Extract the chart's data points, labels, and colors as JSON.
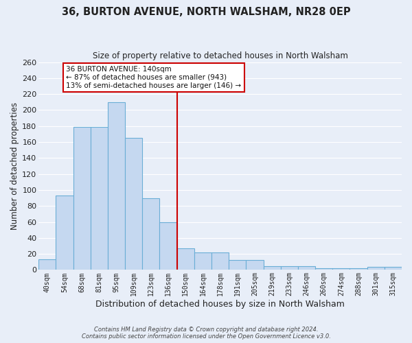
{
  "title": "36, BURTON AVENUE, NORTH WALSHAM, NR28 0EP",
  "subtitle": "Size of property relative to detached houses in North Walsham",
  "xlabel": "Distribution of detached houses by size in North Walsham",
  "ylabel": "Number of detached properties",
  "bar_labels": [
    "40sqm",
    "54sqm",
    "68sqm",
    "81sqm",
    "95sqm",
    "109sqm",
    "123sqm",
    "136sqm",
    "150sqm",
    "164sqm",
    "178sqm",
    "191sqm",
    "205sqm",
    "219sqm",
    "233sqm",
    "246sqm",
    "260sqm",
    "274sqm",
    "288sqm",
    "301sqm",
    "315sqm"
  ],
  "bar_values": [
    13,
    93,
    179,
    179,
    210,
    165,
    90,
    60,
    27,
    22,
    22,
    12,
    12,
    5,
    5,
    5,
    2,
    2,
    2,
    4,
    4
  ],
  "bar_color": "#c5d8f0",
  "bar_edge_color": "#6aaed6",
  "property_line_x": 7,
  "property_sqm": 140,
  "annotation_line1": "36 BURTON AVENUE: 140sqm",
  "annotation_line2": "← 87% of detached houses are smaller (943)",
  "annotation_line3": "13% of semi-detached houses are larger (146) →",
  "ylim": [
    0,
    260
  ],
  "yticks": [
    0,
    20,
    40,
    60,
    80,
    100,
    120,
    140,
    160,
    180,
    200,
    220,
    240,
    260
  ],
  "background_color": "#e8eef8",
  "grid_color": "#ffffff",
  "annotation_box_color": "#ffffff",
  "annotation_box_edge_color": "#cc0000",
  "vline_color": "#cc0000",
  "footer_line1": "Contains HM Land Registry data © Crown copyright and database right 2024.",
  "footer_line2": "Contains public sector information licensed under the Open Government Licence v3.0."
}
